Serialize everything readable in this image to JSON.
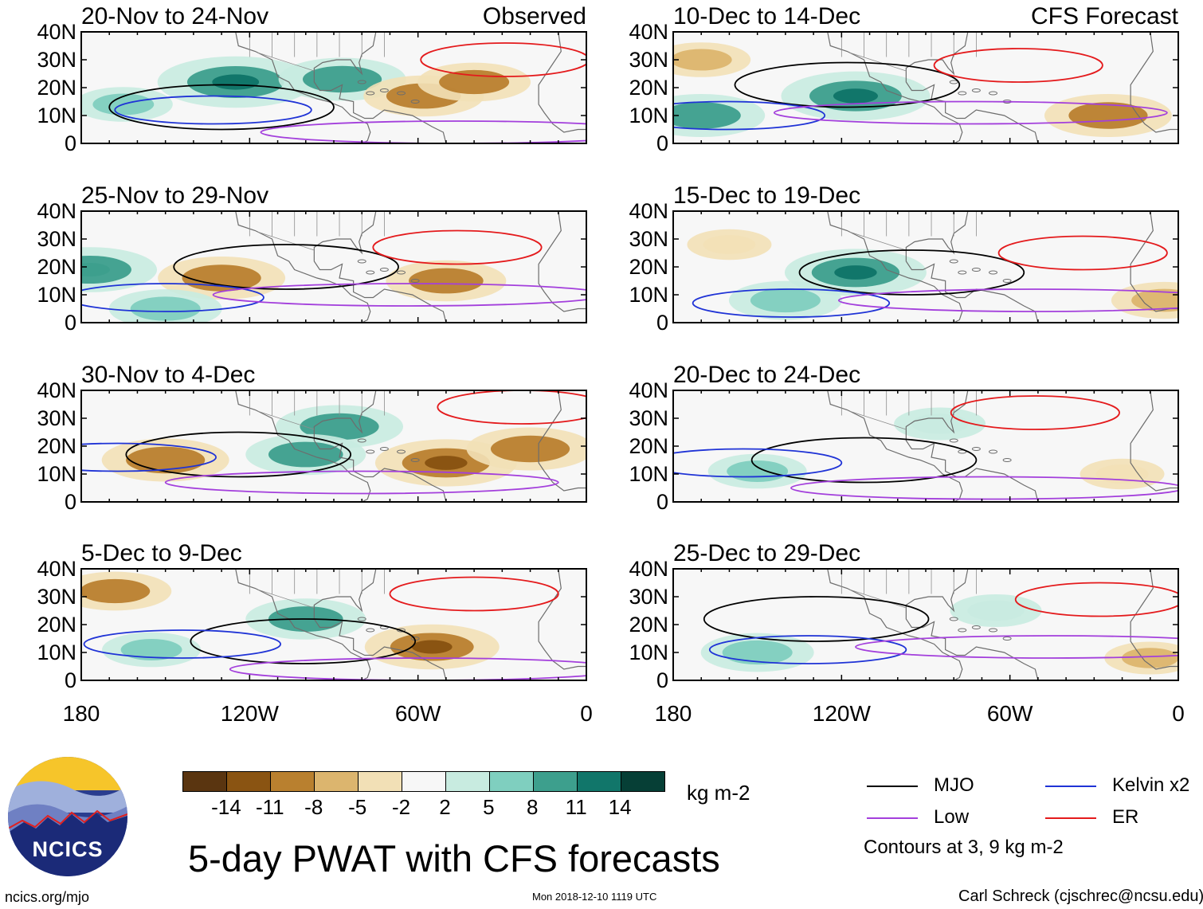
{
  "figure": {
    "title": "5-day PWAT with CFS forecasts",
    "units": "kg m-2",
    "source_left": "Observed",
    "source_right": "CFS Forecast",
    "footer_url": "ncics.org/mjo",
    "footer_timestamp": "Mon 2018-12-10 1119 UTC",
    "footer_author": "Carl Schreck (cjschrec@ncsu.edu)",
    "logo_text": "NCICS"
  },
  "axes": {
    "y_ticks": [
      "40N",
      "30N",
      "20N",
      "10N",
      "0"
    ],
    "x_ticks": [
      "180",
      "120W",
      "60W",
      "0"
    ],
    "lon_range": [
      -180,
      0
    ],
    "lat_range": [
      0,
      40
    ]
  },
  "panels": [
    {
      "title": "20-Nov to 24-Nov",
      "column": "left",
      "row": 0
    },
    {
      "title": "25-Nov to 29-Nov",
      "column": "left",
      "row": 1
    },
    {
      "title": "30-Nov to 4-Dec",
      "column": "left",
      "row": 2
    },
    {
      "title": "5-Dec to 9-Dec",
      "column": "left",
      "row": 3
    },
    {
      "title": "10-Dec to 14-Dec",
      "column": "right",
      "row": 0
    },
    {
      "title": "15-Dec to 19-Dec",
      "column": "right",
      "row": 1
    },
    {
      "title": "20-Dec to 24-Dec",
      "column": "right",
      "row": 2
    },
    {
      "title": "25-Dec to 29-Dec",
      "column": "right",
      "row": 3
    }
  ],
  "colorbar": {
    "labels": [
      "-14",
      "-11",
      "-8",
      "-5",
      "-2",
      "2",
      "5",
      "8",
      "11",
      "14"
    ],
    "colors": [
      "#5a3510",
      "#8a5412",
      "#b9802f",
      "#dcb56e",
      "#f2e0b6",
      "#f7f7f7",
      "#c8ebe0",
      "#7fcfbf",
      "#3d9f8d",
      "#11766a",
      "#063f36"
    ]
  },
  "legend": {
    "items": [
      {
        "label": "MJO",
        "color": "#000000"
      },
      {
        "label": "Kelvin x2",
        "color": "#1f33d6"
      },
      {
        "label": "Low",
        "color": "#a33fdc"
      },
      {
        "label": "ER",
        "color": "#e41a1c"
      }
    ],
    "note": "Contours at 3, 9 kg m-2"
  },
  "chart_data": {
    "type": "heatmap",
    "variable": "PWAT anomaly",
    "units": "kg m-2",
    "levels": [
      -14,
      -11,
      -8,
      -5,
      -2,
      2,
      5,
      8,
      11,
      14
    ],
    "contour_levels_kg_m2": [
      3,
      9
    ],
    "anomaly_features": [
      {
        "panel": 0,
        "lon": -125,
        "lat": 22,
        "value": 14
      },
      {
        "panel": 0,
        "lon": -87,
        "lat": 23,
        "value": 10
      },
      {
        "panel": 0,
        "lon": -58,
        "lat": 17,
        "value": -9
      },
      {
        "panel": 0,
        "lon": -40,
        "lat": 22,
        "value": -8
      },
      {
        "panel": 0,
        "lon": -165,
        "lat": 14,
        "value": 6
      },
      {
        "panel": 1,
        "lon": -130,
        "lat": 16,
        "value": -10
      },
      {
        "panel": 1,
        "lon": -50,
        "lat": 15,
        "value": -9
      },
      {
        "panel": 1,
        "lon": -177,
        "lat": 19,
        "value": 11
      },
      {
        "panel": 1,
        "lon": -150,
        "lat": 5,
        "value": 8
      },
      {
        "panel": 2,
        "lon": -150,
        "lat": 15,
        "value": -10
      },
      {
        "panel": 2,
        "lon": -50,
        "lat": 14,
        "value": -12
      },
      {
        "panel": 2,
        "lon": -20,
        "lat": 19,
        "value": -10
      },
      {
        "panel": 2,
        "lon": -88,
        "lat": 27,
        "value": 10
      },
      {
        "panel": 2,
        "lon": -100,
        "lat": 17,
        "value": 9
      },
      {
        "panel": 3,
        "lon": -168,
        "lat": 32,
        "value": -8
      },
      {
        "panel": 3,
        "lon": -55,
        "lat": 12,
        "value": -11
      },
      {
        "panel": 3,
        "lon": -100,
        "lat": 22,
        "value": 9
      },
      {
        "panel": 3,
        "lon": -155,
        "lat": 11,
        "value": 6
      },
      {
        "panel": 4,
        "lon": -115,
        "lat": 17,
        "value": 13
      },
      {
        "panel": 4,
        "lon": -170,
        "lat": 10,
        "value": 10
      },
      {
        "panel": 4,
        "lon": -25,
        "lat": 10,
        "value": -10
      },
      {
        "panel": 4,
        "lon": -170,
        "lat": 30,
        "value": -6
      },
      {
        "panel": 5,
        "lon": -115,
        "lat": 18,
        "value": 12
      },
      {
        "panel": 5,
        "lon": -140,
        "lat": 8,
        "value": 8
      },
      {
        "panel": 5,
        "lon": -160,
        "lat": 28,
        "value": -4
      },
      {
        "panel": 5,
        "lon": -5,
        "lat": 8,
        "value": -7
      },
      {
        "panel": 6,
        "lon": -150,
        "lat": 11,
        "value": 6
      },
      {
        "panel": 6,
        "lon": -85,
        "lat": 28,
        "value": 5
      },
      {
        "panel": 6,
        "lon": -20,
        "lat": 10,
        "value": -4
      },
      {
        "panel": 7,
        "lon": -150,
        "lat": 10,
        "value": 8
      },
      {
        "panel": 7,
        "lon": -65,
        "lat": 25,
        "value": 5
      },
      {
        "panel": 7,
        "lon": -10,
        "lat": 8,
        "value": -5
      }
    ]
  }
}
